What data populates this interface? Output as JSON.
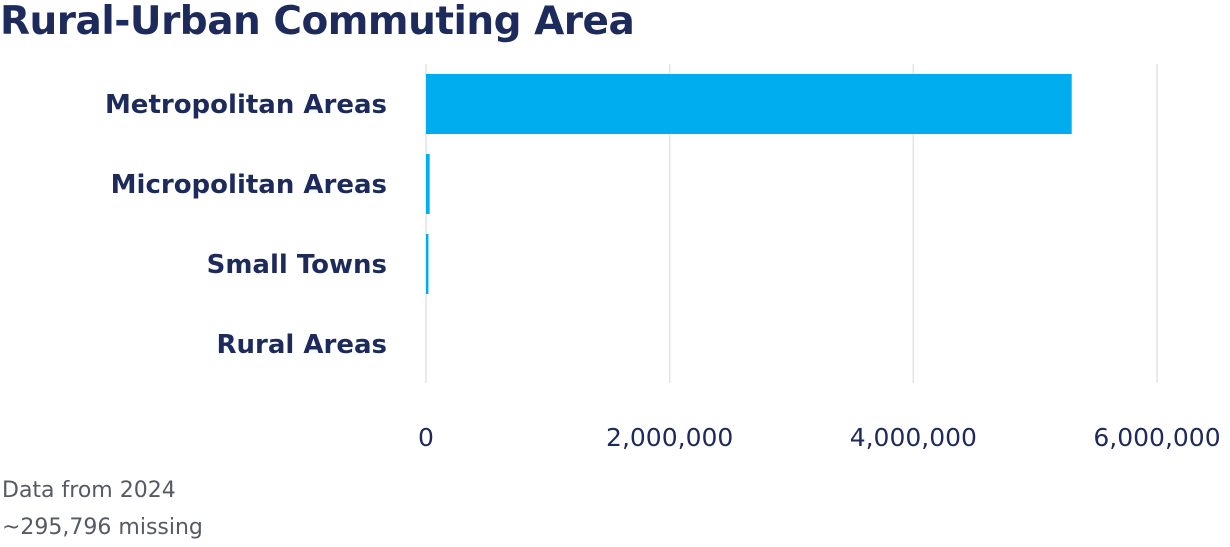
{
  "title": "Rural-Urban Commuting Area",
  "notes": {
    "year": "Data from 2024",
    "missing": "~295,796 missing"
  },
  "colors": {
    "bar": "#00aeef",
    "text": "#1d2a5c",
    "grid": "#e3e3e3",
    "note": "#555a64"
  },
  "chart_data": {
    "type": "bar",
    "orientation": "horizontal",
    "title": "Rural-Urban Commuting Area",
    "categories": [
      "Metropolitan Areas",
      "Micropolitan Areas",
      "Small Towns",
      "Rural Areas"
    ],
    "values": [
      5300000,
      30000,
      20000,
      0
    ],
    "xlabel": "",
    "ylabel": "",
    "xlim": [
      0,
      6000000
    ],
    "xticks": [
      0,
      2000000,
      4000000,
      6000000
    ],
    "xtick_labels": [
      "0",
      "2,000,000",
      "4,000,000",
      "6,000,000"
    ],
    "grid": true,
    "legend": "none"
  }
}
